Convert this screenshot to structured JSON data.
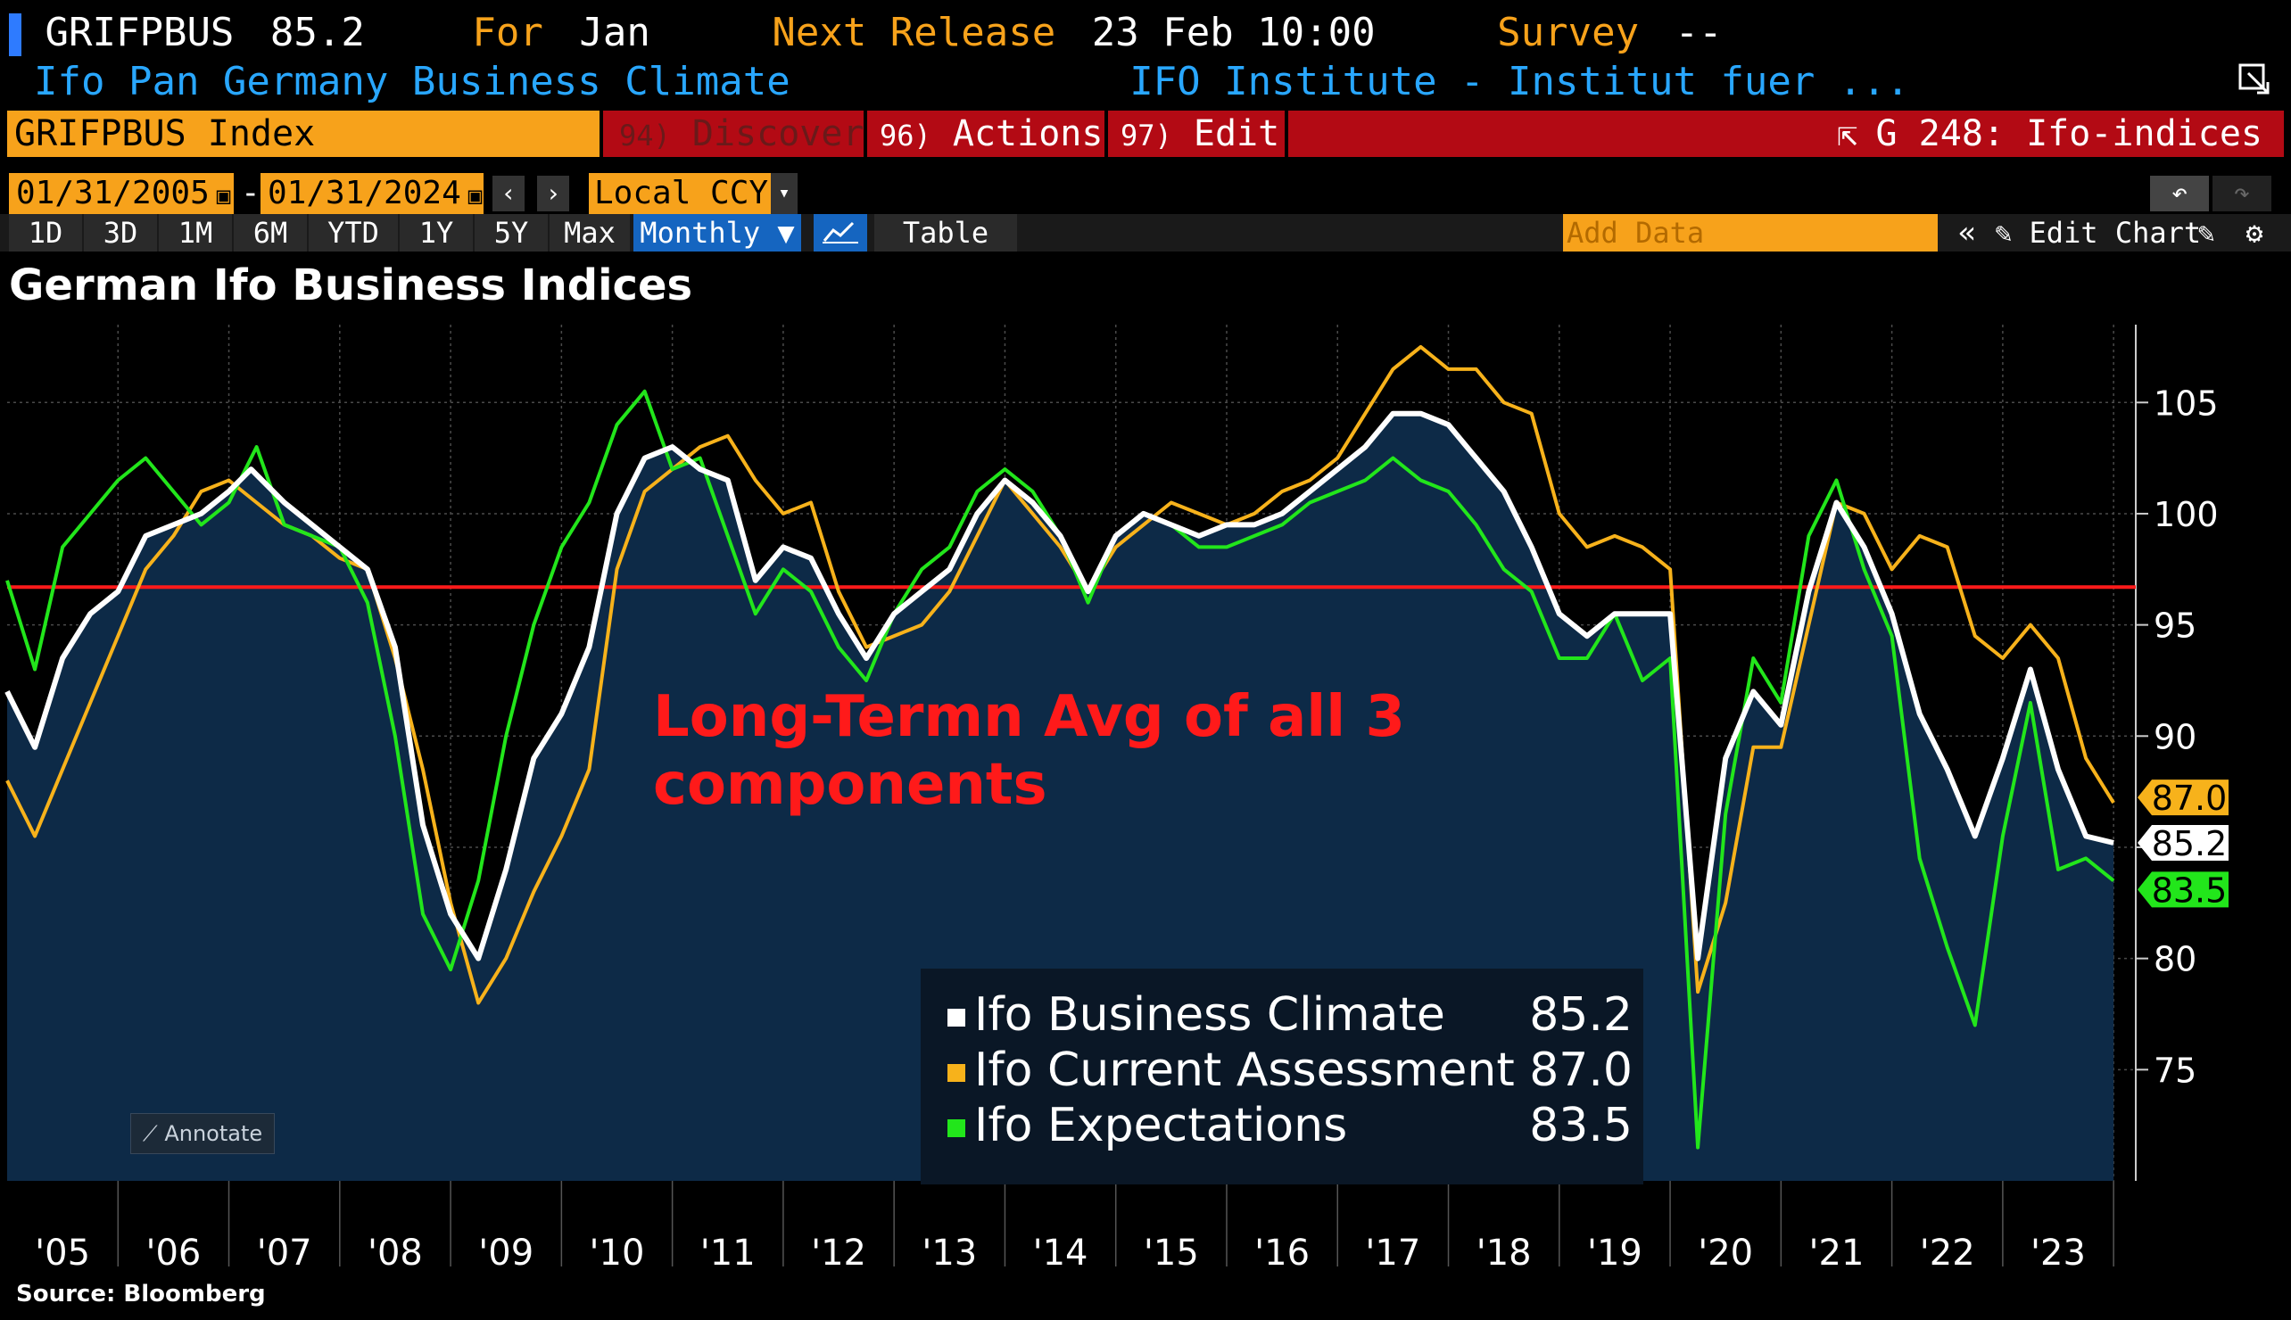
{
  "header": {
    "ticker": "GRIFPBUS",
    "last_value": "85.2",
    "for_label": "For",
    "for_period": "Jan",
    "next_release_label": "Next Release",
    "next_release_value": "23 Feb 10:00",
    "survey_label": "Survey",
    "survey_value": "--",
    "description": "Ifo Pan Germany Business Climate",
    "source_org": "IFO Institute - Institut fuer ..."
  },
  "command_bar": {
    "security_field": "GRIFPBUS Index",
    "discover_num": "94)",
    "discover_label": "Discover",
    "actions_num": "96)",
    "actions_label": "Actions",
    "edit_num": "97)",
    "edit_label": "Edit",
    "function_label": "G 248: Ifo-indices"
  },
  "range_bar": {
    "start_date": "01/31/2005",
    "end_date": "01/31/2024",
    "range_sep": "-",
    "currency": "Local CCY"
  },
  "period_bar": {
    "periods": [
      "1D",
      "3D",
      "1M",
      "6M",
      "YTD",
      "1Y",
      "5Y",
      "Max"
    ],
    "frequency": "Monthly",
    "table_label": "Table",
    "add_data_placeholder": "Add Data",
    "edit_chart_label": "Edit Chart"
  },
  "chart_title": "German Ifo Business Indices",
  "annotation_text": "Long-Termn Avg of all 3 components",
  "annotation_line1": "Long-Termn Avg of all 3",
  "annotation_line2": "components",
  "annotate_button": "Annotate",
  "source": "Source: Bloomberg",
  "colors": {
    "plot_bg": "#0d2a47",
    "climate": "#ffffff",
    "current": "#f7b21b",
    "expectations": "#22e61b",
    "avg_line": "#ff1a1a",
    "annotation": "#ff1a1a"
  },
  "chart_data": {
    "type": "line",
    "title": "German Ifo Business Indices",
    "x_tick_labels": [
      "'05",
      "'06",
      "'07",
      "'08",
      "'09",
      "'10",
      "'11",
      "'12",
      "'13",
      "'14",
      "'15",
      "'16",
      "'17",
      "'18",
      "'19",
      "'20",
      "'21",
      "'22",
      "'23"
    ],
    "y_tick_labels": [
      "75",
      "80",
      "85",
      "90",
      "95",
      "100",
      "105"
    ],
    "ylim": [
      70,
      108.5
    ],
    "xlim": [
      2005.0,
      2024.2
    ],
    "grid": true,
    "legend_position": "bottom-center",
    "reference_line": {
      "y": 96.7,
      "label": "Long-Termn Avg of all 3 components"
    },
    "series": [
      {
        "name": "Ifo Business Climate",
        "last": "85.2",
        "points": [
          [
            2005.0,
            92.0
          ],
          [
            2005.25,
            89.5
          ],
          [
            2005.5,
            93.5
          ],
          [
            2005.75,
            95.5
          ],
          [
            2006.0,
            96.5
          ],
          [
            2006.25,
            99.0
          ],
          [
            2006.5,
            99.5
          ],
          [
            2006.75,
            100.0
          ],
          [
            2007.0,
            101.0
          ],
          [
            2007.2,
            102.0
          ],
          [
            2007.5,
            100.5
          ],
          [
            2007.75,
            99.5
          ],
          [
            2008.0,
            98.5
          ],
          [
            2008.25,
            97.5
          ],
          [
            2008.5,
            94.0
          ],
          [
            2008.75,
            86.0
          ],
          [
            2009.0,
            82.0
          ],
          [
            2009.25,
            80.0
          ],
          [
            2009.5,
            84.0
          ],
          [
            2009.75,
            89.0
          ],
          [
            2010.0,
            91.0
          ],
          [
            2010.25,
            94.0
          ],
          [
            2010.5,
            100.0
          ],
          [
            2010.75,
            102.5
          ],
          [
            2011.0,
            103.0
          ],
          [
            2011.25,
            102.0
          ],
          [
            2011.5,
            101.5
          ],
          [
            2011.75,
            97.0
          ],
          [
            2012.0,
            98.5
          ],
          [
            2012.25,
            98.0
          ],
          [
            2012.5,
            95.5
          ],
          [
            2012.75,
            93.5
          ],
          [
            2013.0,
            95.5
          ],
          [
            2013.25,
            96.5
          ],
          [
            2013.5,
            97.5
          ],
          [
            2013.75,
            100.0
          ],
          [
            2014.0,
            101.5
          ],
          [
            2014.25,
            100.5
          ],
          [
            2014.5,
            99.0
          ],
          [
            2014.75,
            96.5
          ],
          [
            2015.0,
            99.0
          ],
          [
            2015.25,
            100.0
          ],
          [
            2015.5,
            99.5
          ],
          [
            2015.75,
            99.0
          ],
          [
            2016.0,
            99.5
          ],
          [
            2016.25,
            99.5
          ],
          [
            2016.5,
            100.0
          ],
          [
            2016.75,
            101.0
          ],
          [
            2017.0,
            102.0
          ],
          [
            2017.25,
            103.0
          ],
          [
            2017.5,
            104.5
          ],
          [
            2017.75,
            104.5
          ],
          [
            2018.0,
            104.0
          ],
          [
            2018.25,
            102.5
          ],
          [
            2018.5,
            101.0
          ],
          [
            2018.75,
            98.5
          ],
          [
            2019.0,
            95.5
          ],
          [
            2019.25,
            94.5
          ],
          [
            2019.5,
            95.5
          ],
          [
            2019.75,
            95.5
          ],
          [
            2020.0,
            95.5
          ],
          [
            2020.25,
            80.0
          ],
          [
            2020.5,
            89.0
          ],
          [
            2020.75,
            92.0
          ],
          [
            2021.0,
            90.5
          ],
          [
            2021.25,
            96.5
          ],
          [
            2021.5,
            100.5
          ],
          [
            2021.75,
            98.5
          ],
          [
            2022.0,
            95.5
          ],
          [
            2022.25,
            91.0
          ],
          [
            2022.5,
            88.5
          ],
          [
            2022.75,
            85.5
          ],
          [
            2023.0,
            89.0
          ],
          [
            2023.25,
            93.0
          ],
          [
            2023.5,
            88.5
          ],
          [
            2023.75,
            85.5
          ],
          [
            2024.0,
            85.2
          ]
        ]
      },
      {
        "name": "Ifo Current Assessment",
        "last": "87.0",
        "points": [
          [
            2005.0,
            88.0
          ],
          [
            2005.25,
            85.5
          ],
          [
            2005.5,
            88.5
          ],
          [
            2005.75,
            91.5
          ],
          [
            2006.0,
            94.5
          ],
          [
            2006.25,
            97.5
          ],
          [
            2006.5,
            99.0
          ],
          [
            2006.75,
            101.0
          ],
          [
            2007.0,
            101.5
          ],
          [
            2007.25,
            100.5
          ],
          [
            2007.5,
            99.5
          ],
          [
            2007.75,
            99.0
          ],
          [
            2008.0,
            98.0
          ],
          [
            2008.25,
            97.5
          ],
          [
            2008.5,
            93.5
          ],
          [
            2008.75,
            88.5
          ],
          [
            2009.0,
            82.5
          ],
          [
            2009.25,
            78.0
          ],
          [
            2009.5,
            80.0
          ],
          [
            2009.75,
            83.0
          ],
          [
            2010.0,
            85.5
          ],
          [
            2010.25,
            88.5
          ],
          [
            2010.5,
            97.5
          ],
          [
            2010.75,
            101.0
          ],
          [
            2011.0,
            102.0
          ],
          [
            2011.25,
            103.0
          ],
          [
            2011.5,
            103.5
          ],
          [
            2011.75,
            101.5
          ],
          [
            2012.0,
            100.0
          ],
          [
            2012.25,
            100.5
          ],
          [
            2012.5,
            96.5
          ],
          [
            2012.75,
            94.0
          ],
          [
            2013.0,
            94.5
          ],
          [
            2013.25,
            95.0
          ],
          [
            2013.5,
            96.5
          ],
          [
            2013.75,
            99.0
          ],
          [
            2014.0,
            101.5
          ],
          [
            2014.25,
            100.0
          ],
          [
            2014.5,
            98.5
          ],
          [
            2014.75,
            96.5
          ],
          [
            2015.0,
            98.5
          ],
          [
            2015.25,
            99.5
          ],
          [
            2015.5,
            100.5
          ],
          [
            2015.75,
            100.0
          ],
          [
            2016.0,
            99.5
          ],
          [
            2016.25,
            100.0
          ],
          [
            2016.5,
            101.0
          ],
          [
            2016.75,
            101.5
          ],
          [
            2017.0,
            102.5
          ],
          [
            2017.25,
            104.5
          ],
          [
            2017.5,
            106.5
          ],
          [
            2017.75,
            107.5
          ],
          [
            2018.0,
            106.5
          ],
          [
            2018.25,
            106.5
          ],
          [
            2018.5,
            105.0
          ],
          [
            2018.75,
            104.5
          ],
          [
            2019.0,
            100.0
          ],
          [
            2019.25,
            98.5
          ],
          [
            2019.5,
            99.0
          ],
          [
            2019.75,
            98.5
          ],
          [
            2020.0,
            97.5
          ],
          [
            2020.25,
            78.5
          ],
          [
            2020.5,
            82.5
          ],
          [
            2020.75,
            89.5
          ],
          [
            2021.0,
            89.5
          ],
          [
            2021.25,
            95.0
          ],
          [
            2021.5,
            100.5
          ],
          [
            2021.75,
            100.0
          ],
          [
            2022.0,
            97.5
          ],
          [
            2022.25,
            99.0
          ],
          [
            2022.5,
            98.5
          ],
          [
            2022.75,
            94.5
          ],
          [
            2023.0,
            93.5
          ],
          [
            2023.25,
            95.0
          ],
          [
            2023.5,
            93.5
          ],
          [
            2023.75,
            89.0
          ],
          [
            2024.0,
            87.0
          ]
        ]
      },
      {
        "name": "Ifo Expectations",
        "last": "83.5",
        "points": [
          [
            2005.0,
            97.0
          ],
          [
            2005.25,
            93.0
          ],
          [
            2005.5,
            98.5
          ],
          [
            2005.75,
            100.0
          ],
          [
            2006.0,
            101.5
          ],
          [
            2006.25,
            102.5
          ],
          [
            2006.5,
            101.0
          ],
          [
            2006.75,
            99.5
          ],
          [
            2007.0,
            100.5
          ],
          [
            2007.25,
            103.0
          ],
          [
            2007.5,
            99.5
          ],
          [
            2007.75,
            99.0
          ],
          [
            2008.0,
            98.5
          ],
          [
            2008.25,
            96.0
          ],
          [
            2008.5,
            90.0
          ],
          [
            2008.75,
            82.0
          ],
          [
            2009.0,
            79.5
          ],
          [
            2009.25,
            83.5
          ],
          [
            2009.5,
            90.0
          ],
          [
            2009.75,
            95.0
          ],
          [
            2010.0,
            98.5
          ],
          [
            2010.25,
            100.5
          ],
          [
            2010.5,
            104.0
          ],
          [
            2010.75,
            105.5
          ],
          [
            2011.0,
            102.0
          ],
          [
            2011.25,
            102.5
          ],
          [
            2011.5,
            99.0
          ],
          [
            2011.75,
            95.5
          ],
          [
            2012.0,
            97.5
          ],
          [
            2012.25,
            96.5
          ],
          [
            2012.5,
            94.0
          ],
          [
            2012.75,
            92.5
          ],
          [
            2013.0,
            95.5
          ],
          [
            2013.25,
            97.5
          ],
          [
            2013.5,
            98.5
          ],
          [
            2013.75,
            101.0
          ],
          [
            2014.0,
            102.0
          ],
          [
            2014.25,
            101.0
          ],
          [
            2014.5,
            99.0
          ],
          [
            2014.75,
            96.0
          ],
          [
            2015.0,
            99.0
          ],
          [
            2015.25,
            100.0
          ],
          [
            2015.5,
            99.5
          ],
          [
            2015.75,
            98.5
          ],
          [
            2016.0,
            98.5
          ],
          [
            2016.25,
            99.0
          ],
          [
            2016.5,
            99.5
          ],
          [
            2016.75,
            100.5
          ],
          [
            2017.0,
            101.0
          ],
          [
            2017.25,
            101.5
          ],
          [
            2017.5,
            102.5
          ],
          [
            2017.75,
            101.5
          ],
          [
            2018.0,
            101.0
          ],
          [
            2018.25,
            99.5
          ],
          [
            2018.5,
            97.5
          ],
          [
            2018.75,
            96.5
          ],
          [
            2019.0,
            93.5
          ],
          [
            2019.25,
            93.5
          ],
          [
            2019.5,
            95.5
          ],
          [
            2019.75,
            92.5
          ],
          [
            2020.0,
            93.5
          ],
          [
            2020.25,
            71.5
          ],
          [
            2020.5,
            86.5
          ],
          [
            2020.75,
            93.5
          ],
          [
            2021.0,
            91.5
          ],
          [
            2021.25,
            99.0
          ],
          [
            2021.5,
            101.5
          ],
          [
            2021.75,
            97.5
          ],
          [
            2022.0,
            94.5
          ],
          [
            2022.25,
            84.5
          ],
          [
            2022.5,
            80.5
          ],
          [
            2022.75,
            77.0
          ],
          [
            2023.0,
            85.5
          ],
          [
            2023.25,
            91.5
          ],
          [
            2023.5,
            84.0
          ],
          [
            2023.75,
            84.5
          ],
          [
            2024.0,
            83.5
          ]
        ]
      }
    ]
  }
}
